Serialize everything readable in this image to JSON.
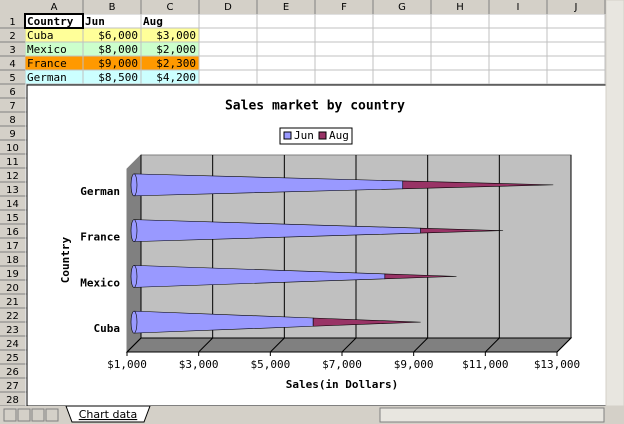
{
  "columns": [
    "A",
    "B",
    "C",
    "D",
    "E",
    "F",
    "G",
    "H",
    "I",
    "J"
  ],
  "rows": [
    "1",
    "2",
    "3",
    "4",
    "5",
    "6",
    "7",
    "8",
    "9",
    "10",
    "11",
    "12",
    "13",
    "14",
    "15",
    "16",
    "17",
    "18",
    "19",
    "20",
    "21",
    "22",
    "23",
    "24",
    "25",
    "26",
    "27",
    "28"
  ],
  "sheet": {
    "header": [
      "Country",
      "Jun",
      "Aug"
    ],
    "rows": [
      [
        "Cuba",
        "$6,000",
        "$3,000"
      ],
      [
        "Mexico",
        "$8,000",
        "$2,000"
      ],
      [
        "France",
        "$9,000",
        "$2,300"
      ],
      [
        "German",
        "$8,500",
        "$4,200"
      ]
    ]
  },
  "tab": "Chart data",
  "chart_data": {
    "type": "bar",
    "orientation": "horizontal",
    "stacked": true,
    "title": "Sales market by country",
    "x_label": "Sales(in Dollars)",
    "y_label": "Country",
    "categories": [
      "Cuba",
      "Mexico",
      "France",
      "German"
    ],
    "series": [
      {
        "name": "Jun",
        "color": "#9999ff",
        "values": [
          6000,
          8000,
          9000,
          8500
        ]
      },
      {
        "name": "Aug",
        "color": "#993366",
        "values": [
          3000,
          2000,
          2300,
          4200
        ]
      }
    ],
    "xlim": [
      1000,
      13000
    ],
    "xticks": [
      {
        "value": 1000,
        "label": "$1,000"
      },
      {
        "value": 3000,
        "label": "$3,000"
      },
      {
        "value": 5000,
        "label": "$5,000"
      },
      {
        "value": 7000,
        "label": "$7,000"
      },
      {
        "value": 9000,
        "label": "$9,000"
      },
      {
        "value": 11000,
        "label": "$11,000"
      },
      {
        "value": 13000,
        "label": "$13,000"
      }
    ],
    "grid": true,
    "legend": "top"
  }
}
